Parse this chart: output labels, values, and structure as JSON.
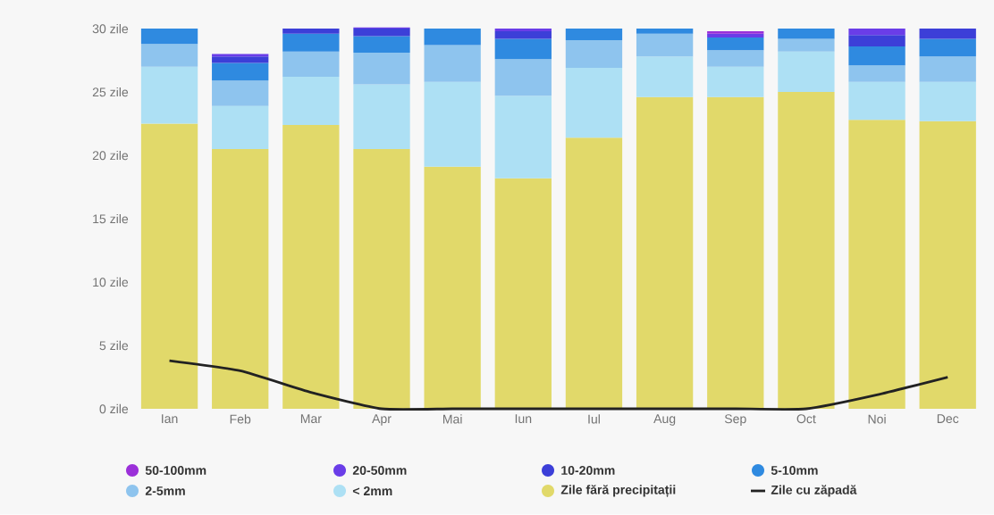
{
  "chart_data": {
    "type": "bar",
    "stacked": true,
    "categories": [
      "Ian",
      "Feb",
      "Mar",
      "Apr",
      "Mai",
      "Iun",
      "Iul",
      "Aug",
      "Sep",
      "Oct",
      "Noi",
      "Dec"
    ],
    "series": [
      {
        "name": "Zile fără precipitații",
        "color": "#e1d96a",
        "values": [
          22.5,
          20.5,
          22.4,
          20.5,
          19.1,
          18.2,
          21.4,
          24.6,
          24.6,
          25.0,
          22.8,
          22.7
        ]
      },
      {
        "name": "< 2mm",
        "color": "#ade0f4",
        "values": [
          4.5,
          3.4,
          3.8,
          5.1,
          6.7,
          6.5,
          5.5,
          3.2,
          2.4,
          3.2,
          3.0,
          3.1
        ]
      },
      {
        "name": "2-5mm",
        "color": "#8ec4ee",
        "values": [
          1.8,
          2.0,
          2.0,
          2.5,
          2.9,
          2.9,
          2.2,
          1.8,
          1.3,
          1.0,
          1.3,
          2.0
        ]
      },
      {
        "name": "5-10mm",
        "color": "#2f8ae0",
        "values": [
          1.2,
          1.4,
          1.4,
          1.3,
          1.3,
          1.6,
          0.9,
          0.4,
          1.0,
          0.8,
          1.5,
          1.4
        ]
      },
      {
        "name": "10-20mm",
        "color": "#3c3fd8",
        "values": [
          null,
          0.5,
          0.4,
          0.6,
          null,
          0.6,
          null,
          null,
          null,
          null,
          0.9,
          0.8
        ]
      },
      {
        "name": "20-50mm",
        "color": "#6a3de8",
        "values": [
          null,
          0.2,
          null,
          0.1,
          null,
          0.2,
          null,
          null,
          0.3,
          null,
          0.5,
          null
        ]
      },
      {
        "name": "50-100mm",
        "color": "#9b30d9",
        "values": [
          null,
          null,
          null,
          null,
          null,
          null,
          null,
          null,
          0.2,
          null,
          null,
          null
        ]
      },
      {
        "name": "Zile cu zăpadă",
        "type": "line",
        "color": "#222222",
        "values": [
          3.8,
          3.0,
          1.3,
          0,
          0,
          0,
          0,
          0,
          0,
          0,
          1.1,
          2.5
        ]
      }
    ],
    "ylim": [
      0,
      30
    ],
    "yticks": [
      {
        "value": 0,
        "label": "0 zile"
      },
      {
        "value": 5,
        "label": "5 zile"
      },
      {
        "value": 10,
        "label": "10 zile"
      },
      {
        "value": 15,
        "label": "15 zile"
      },
      {
        "value": 20,
        "label": "20 zile"
      },
      {
        "value": 25,
        "label": "25 zile"
      },
      {
        "value": 30,
        "label": "30 zile"
      }
    ],
    "legend": "bottom",
    "marker": "none",
    "line_style": "solid"
  }
}
